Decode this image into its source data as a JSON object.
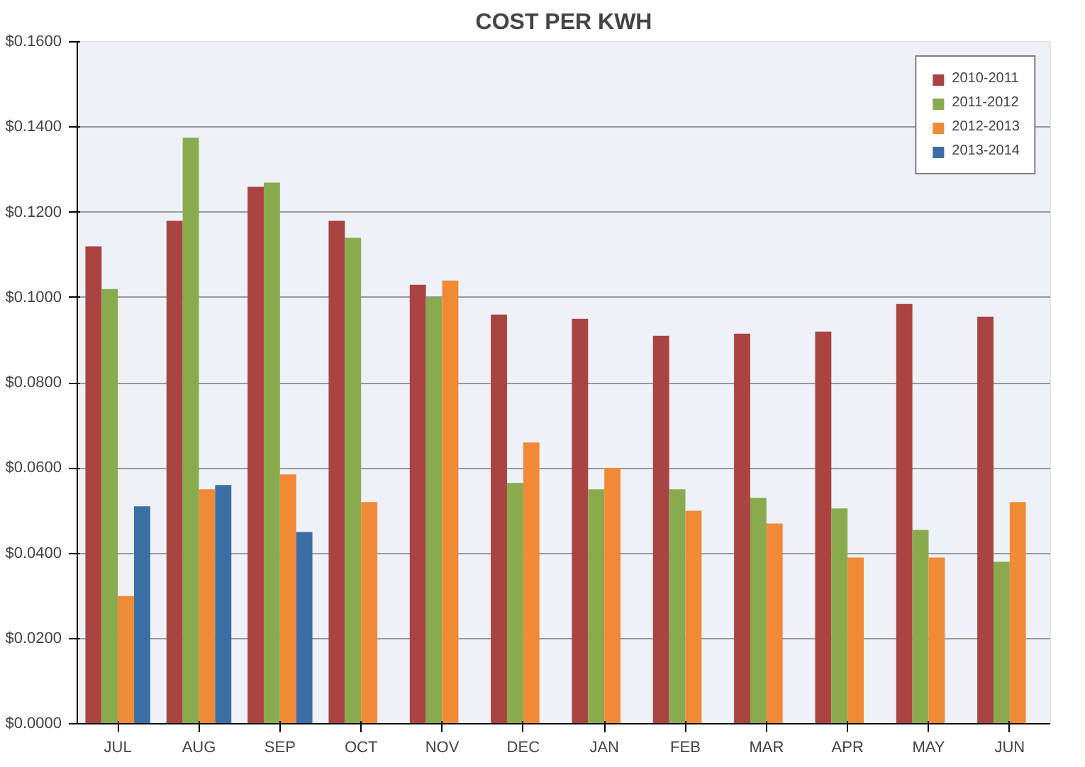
{
  "chart_data": {
    "type": "bar",
    "title": "COST PER KWH",
    "categories": [
      "JUL",
      "AUG",
      "SEP",
      "OCT",
      "NOV",
      "DEC",
      "JAN",
      "FEB",
      "MAR",
      "APR",
      "MAY",
      "JUN"
    ],
    "series": [
      {
        "name": "2010-2011",
        "color": "#a94442",
        "values": [
          0.112,
          0.118,
          0.126,
          0.118,
          0.103,
          0.096,
          0.095,
          0.091,
          0.0915,
          0.092,
          0.0985,
          0.0955
        ]
      },
      {
        "name": "2011-2012",
        "color": "#8aaa4e",
        "values": [
          0.102,
          0.1375,
          0.127,
          0.114,
          0.1,
          0.0565,
          0.055,
          0.055,
          0.053,
          0.0505,
          0.0455,
          0.038
        ]
      },
      {
        "name": "2012-2013",
        "color": "#f08a36",
        "values": [
          0.03,
          0.055,
          0.0585,
          0.052,
          0.104,
          0.066,
          0.06,
          0.05,
          0.047,
          0.039,
          0.039,
          0.052
        ]
      },
      {
        "name": "2013-2014",
        "color": "#3a6ea5",
        "values": [
          0.051,
          0.056,
          0.045,
          null,
          null,
          null,
          null,
          null,
          null,
          null,
          null,
          null
        ]
      }
    ],
    "ylim": [
      0,
      0.16
    ],
    "yticks": [
      {
        "value": 0,
        "label": "$0.0000"
      },
      {
        "value": 0.02,
        "label": "$0.0200"
      },
      {
        "value": 0.04,
        "label": "$0.0400"
      },
      {
        "value": 0.06,
        "label": "$0.0600"
      },
      {
        "value": 0.08,
        "label": "$0.0800"
      },
      {
        "value": 0.1,
        "label": "$0.1000"
      },
      {
        "value": 0.12,
        "label": "$0.1200"
      },
      {
        "value": 0.14,
        "label": "$0.1400"
      },
      {
        "value": 0.16,
        "label": "$0.1600"
      }
    ],
    "grid": "y",
    "legend": "top right"
  }
}
